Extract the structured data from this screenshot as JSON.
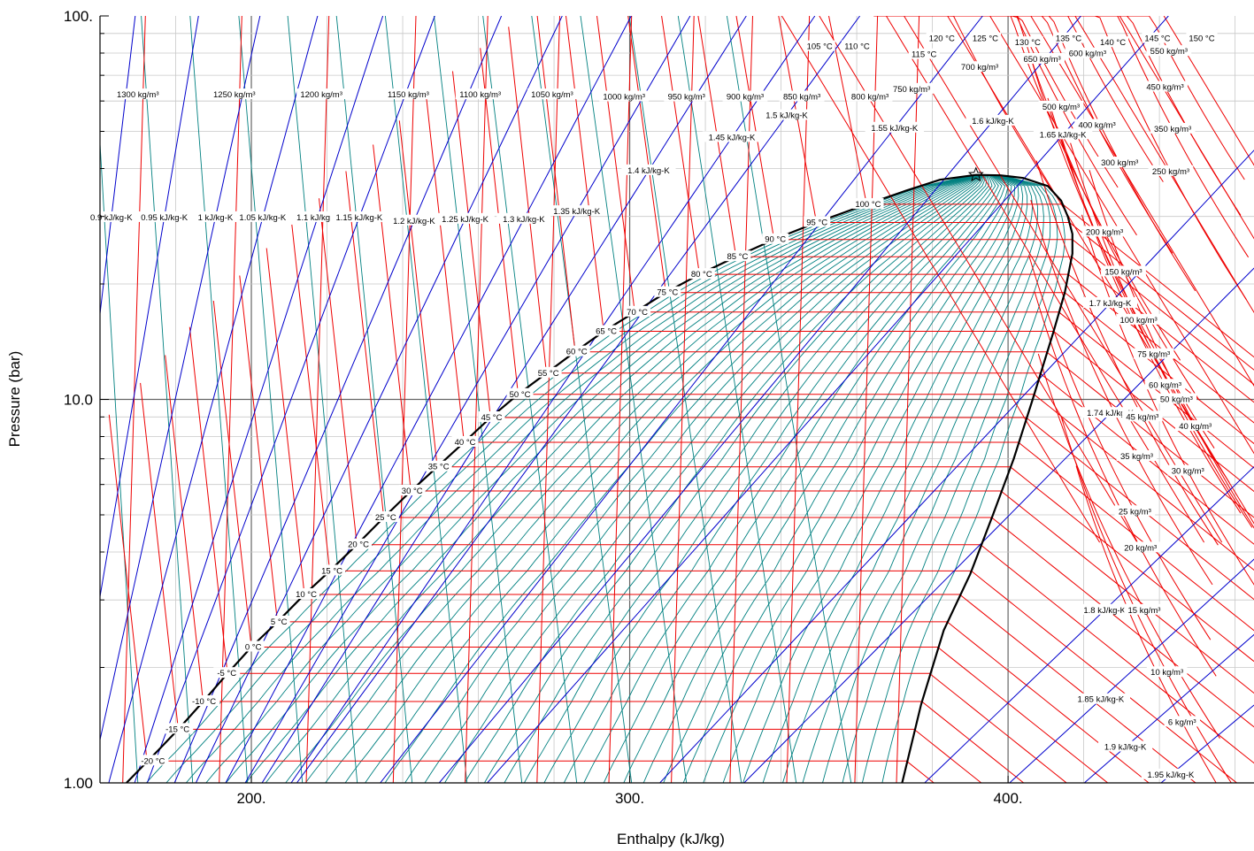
{
  "chart_data": {
    "type": "line",
    "title": "",
    "xlabel": "Enthalpy (kJ/kg)",
    "ylabel": "Pressure (bar)",
    "xlim": [
      160,
      465
    ],
    "ylim": [
      1.0,
      100.0
    ],
    "y_scale": "log",
    "grid": true,
    "x_ticks": [
      {
        "value": 200,
        "label": "200."
      },
      {
        "value": 300,
        "label": "300."
      },
      {
        "value": 400,
        "label": "400."
      }
    ],
    "y_ticks": [
      {
        "value": 1,
        "label": "1.00"
      },
      {
        "value": 10,
        "label": "10.0"
      },
      {
        "value": 100,
        "label": "100."
      }
    ],
    "critical_point": {
      "h": 391.5,
      "p": 38.5
    },
    "colors": {
      "isotherm": "#ee0000",
      "isochore": "#ee0000",
      "isentrope": "#0000cc",
      "quality": "#008080",
      "saturation": "#000000",
      "grid": "#c8c8c8",
      "major_grid": "#666666"
    },
    "saturation_dome": {
      "liquid": [
        {
          "h": 167.0,
          "p": 1.0
        },
        {
          "h": 175.5,
          "p": 1.22
        },
        {
          "h": 181.0,
          "p": 1.39
        },
        {
          "h": 187.5,
          "p": 1.64
        },
        {
          "h": 193.3,
          "p": 1.91
        },
        {
          "h": 200.0,
          "p": 2.26
        },
        {
          "h": 206.6,
          "p": 2.61
        },
        {
          "h": 213.6,
          "p": 3.07
        },
        {
          "h": 220.6,
          "p": 3.56
        },
        {
          "h": 227.9,
          "p": 4.18
        },
        {
          "h": 235.0,
          "p": 4.92
        },
        {
          "h": 242.1,
          "p": 5.76
        },
        {
          "h": 249.0,
          "p": 6.65
        },
        {
          "h": 256.1,
          "p": 7.71
        },
        {
          "h": 263.0,
          "p": 8.93
        },
        {
          "h": 270.4,
          "p": 10.29
        },
        {
          "h": 277.9,
          "p": 11.69
        },
        {
          "h": 285.4,
          "p": 13.27
        },
        {
          "h": 293.1,
          "p": 15.04
        },
        {
          "h": 301.3,
          "p": 16.88
        },
        {
          "h": 309.6,
          "p": 19.01
        },
        {
          "h": 318.4,
          "p": 21.18
        },
        {
          "h": 327.9,
          "p": 23.51
        },
        {
          "h": 338.0,
          "p": 26.08
        },
        {
          "h": 349.2,
          "p": 28.89
        },
        {
          "h": 362.5,
          "p": 32.24
        },
        {
          "h": 373.0,
          "p": 35.0
        },
        {
          "h": 382.0,
          "p": 37.4
        },
        {
          "h": 391.5,
          "p": 38.5
        }
      ],
      "vapor": [
        {
          "h": 391.5,
          "p": 38.5
        },
        {
          "h": 398.0,
          "p": 38.4
        },
        {
          "h": 404.0,
          "p": 37.8
        },
        {
          "h": 410.5,
          "p": 36.0
        },
        {
          "h": 414.0,
          "p": 33.0
        },
        {
          "h": 415.8,
          "p": 30.0
        },
        {
          "h": 417.0,
          "p": 27.0
        },
        {
          "h": 417.0,
          "p": 24.0
        },
        {
          "h": 415.0,
          "p": 19.0
        },
        {
          "h": 412.0,
          "p": 15.0
        },
        {
          "h": 406.5,
          "p": 10.0
        },
        {
          "h": 401.5,
          "p": 7.0
        },
        {
          "h": 396.0,
          "p": 5.0
        },
        {
          "h": 390.0,
          "p": 3.5
        },
        {
          "h": 383.0,
          "p": 2.5
        },
        {
          "h": 377.0,
          "p": 1.6
        },
        {
          "h": 372.0,
          "p": 1.0
        }
      ]
    },
    "series": [
      {
        "name": "isotherms",
        "labels_on_dome": [
          {
            "label": "-20 °C",
            "h": 174.0,
            "p": 1.14
          },
          {
            "label": "-15 °C",
            "h": 180.5,
            "p": 1.38
          },
          {
            "label": "-10 °C",
            "h": 187.5,
            "p": 1.63
          },
          {
            "label": "-5 °C",
            "h": 193.5,
            "p": 1.93
          },
          {
            "label": "0 °C",
            "h": 200.5,
            "p": 2.26
          },
          {
            "label": "5 °C",
            "h": 207.3,
            "p": 2.63
          },
          {
            "label": "10 °C",
            "h": 214.5,
            "p": 3.1
          },
          {
            "label": "15 °C",
            "h": 221.3,
            "p": 3.57
          },
          {
            "label": "20 °C",
            "h": 228.3,
            "p": 4.18
          },
          {
            "label": "25 °C",
            "h": 235.5,
            "p": 4.92
          },
          {
            "label": "30 °C",
            "h": 242.5,
            "p": 5.77
          },
          {
            "label": "35 °C",
            "h": 249.5,
            "p": 6.67
          },
          {
            "label": "40 °C",
            "h": 256.5,
            "p": 7.73
          },
          {
            "label": "45 °C",
            "h": 263.5,
            "p": 8.97
          },
          {
            "label": "50 °C",
            "h": 271.0,
            "p": 10.31
          },
          {
            "label": "55 °C",
            "h": 278.5,
            "p": 11.71
          },
          {
            "label": "60 °C",
            "h": 286.0,
            "p": 13.31
          },
          {
            "label": "65 °C",
            "h": 293.8,
            "p": 15.05
          },
          {
            "label": "70 °C",
            "h": 302.0,
            "p": 16.89
          },
          {
            "label": "75 °C",
            "h": 310.0,
            "p": 19.0
          },
          {
            "label": "80 °C",
            "h": 319.0,
            "p": 21.19
          },
          {
            "label": "85 °C",
            "h": 328.5,
            "p": 23.56
          },
          {
            "label": "90 °C",
            "h": 338.5,
            "p": 26.12
          },
          {
            "label": "95 °C",
            "h": 349.5,
            "p": 28.93
          },
          {
            "label": "100 °C",
            "h": 363.0,
            "p": 32.27
          }
        ],
        "labels_top": [
          {
            "label": "105 °C",
            "h": 350.2,
            "p": 83.2
          },
          {
            "label": "110 °C",
            "h": 360.1,
            "p": 83.2
          },
          {
            "label": "115 °C",
            "h": 377.8,
            "p": 79.3
          },
          {
            "label": "120 °C",
            "h": 382.5,
            "p": 87.3
          },
          {
            "label": "125 °C",
            "h": 394.0,
            "p": 87.3
          },
          {
            "label": "130 °C",
            "h": 405.2,
            "p": 85.2
          },
          {
            "label": "135 °C",
            "h": 416.0,
            "p": 87.3
          },
          {
            "label": "140 °C",
            "h": 427.7,
            "p": 85.2
          },
          {
            "label": "145 °C",
            "h": 439.5,
            "p": 87.3
          },
          {
            "label": "150 °C",
            "h": 451.2,
            "p": 87.3
          }
        ]
      },
      {
        "name": "isentropes",
        "labels": [
          {
            "label": "0.9 kJ/kg-K",
            "h": 163.0,
            "p": 29.8
          },
          {
            "label": "0.95 kJ/kg-K",
            "h": 177.0,
            "p": 29.8
          },
          {
            "label": "1 kJ/kg-K",
            "h": 190.5,
            "p": 29.8
          },
          {
            "label": "1.05 kJ/kg-K",
            "h": 203.0,
            "p": 29.8
          },
          {
            "label": "1.1 kJ/kg-K",
            "h": 217.5,
            "p": 29.8
          },
          {
            "label": "1.15 kJ/kg-K",
            "h": 228.5,
            "p": 29.8
          },
          {
            "label": "1.2 kJ/kg-K",
            "h": 243.0,
            "p": 29.2
          },
          {
            "label": "1.25 kJ/kg-K",
            "h": 256.5,
            "p": 29.5
          },
          {
            "label": "1.3 kJ/kg-K",
            "h": 272.0,
            "p": 29.5
          },
          {
            "label": "1.35 kJ/kg-K",
            "h": 286.0,
            "p": 30.9
          },
          {
            "label": "1.4 kJ/kg-K",
            "h": 305.0,
            "p": 39.5
          },
          {
            "label": "1.45 kJ/kg-K",
            "h": 327.0,
            "p": 48.2
          },
          {
            "label": "1.5 kJ/kg-K",
            "h": 341.5,
            "p": 55.0
          },
          {
            "label": "1.55 kJ/kg-K",
            "h": 370.0,
            "p": 51.0
          },
          {
            "label": "1.6 kJ/kg-K",
            "h": 396.0,
            "p": 53.2
          },
          {
            "label": "1.65 kJ/kg-K",
            "h": 414.5,
            "p": 49.0
          },
          {
            "label": "1.7 kJ/kg-K",
            "h": 427.0,
            "p": 17.8
          },
          {
            "label": "1.74 kJ/kg-K",
            "h": 427.0,
            "p": 9.2
          },
          {
            "label": "1.8 kJ/kg-K",
            "h": 425.5,
            "p": 2.82
          },
          {
            "label": "1.85 kJ/kg-K",
            "h": 424.5,
            "p": 1.65
          },
          {
            "label": "1.9 kJ/kg-K",
            "h": 431.0,
            "p": 1.24
          },
          {
            "label": "1.95 kJ/kg-K",
            "h": 443.0,
            "p": 1.05
          }
        ]
      },
      {
        "name": "isochores",
        "labels": [
          {
            "label": "1300 kg/m³",
            "h": 170.0,
            "p": 62.3
          },
          {
            "label": "1250 kg/m³",
            "h": 195.5,
            "p": 62.3
          },
          {
            "label": "1200 kg/m³",
            "h": 218.5,
            "p": 62.3
          },
          {
            "label": "1150 kg/m³",
            "h": 241.5,
            "p": 62.3
          },
          {
            "label": "1100 kg/m³",
            "h": 260.5,
            "p": 62.3
          },
          {
            "label": "1050 kg/m³",
            "h": 279.5,
            "p": 62.3
          },
          {
            "label": "1000 kg/m³",
            "h": 298.5,
            "p": 61.5
          },
          {
            "label": "950 kg/m³",
            "h": 315.0,
            "p": 61.5
          },
          {
            "label": "900 kg/m³",
            "h": 330.5,
            "p": 61.5
          },
          {
            "label": "850 kg/m³",
            "h": 345.5,
            "p": 61.5
          },
          {
            "label": "800 kg/m³",
            "h": 363.5,
            "p": 61.5
          },
          {
            "label": "750 kg/m³",
            "h": 374.5,
            "p": 64.4
          },
          {
            "label": "700 kg/m³",
            "h": 392.5,
            "p": 73.4
          },
          {
            "label": "650 kg/m³",
            "h": 409.0,
            "p": 77.1
          },
          {
            "label": "600 kg/m³",
            "h": 421.0,
            "p": 79.7
          },
          {
            "label": "550 kg/m³",
            "h": 442.5,
            "p": 80.8
          },
          {
            "label": "500 kg/m³",
            "h": 414.0,
            "p": 57.9
          },
          {
            "label": "450 kg/m³",
            "h": 441.5,
            "p": 65.2
          },
          {
            "label": "400 kg/m³",
            "h": 423.5,
            "p": 51.9
          },
          {
            "label": "350 kg/m³",
            "h": 443.5,
            "p": 50.7
          },
          {
            "label": "300 kg/m³",
            "h": 429.5,
            "p": 41.4
          },
          {
            "label": "250 kg/m³",
            "h": 443.0,
            "p": 39.3
          },
          {
            "label": "200 kg/m³",
            "h": 425.5,
            "p": 27.3
          },
          {
            "label": "150 kg/m³",
            "h": 430.5,
            "p": 21.5
          },
          {
            "label": "100 kg/m³",
            "h": 434.5,
            "p": 16.1
          },
          {
            "label": "75 kg/m³",
            "h": 438.5,
            "p": 13.1
          },
          {
            "label": "60 kg/m³",
            "h": 441.5,
            "p": 10.9
          },
          {
            "label": "50 kg/m³",
            "h": 444.5,
            "p": 10.0
          },
          {
            "label": "45 kg/m³",
            "h": 435.5,
            "p": 9.0
          },
          {
            "label": "40 kg/m³",
            "h": 449.5,
            "p": 8.5
          },
          {
            "label": "35 kg/m³",
            "h": 434.0,
            "p": 7.1
          },
          {
            "label": "30 kg/m³",
            "h": 447.5,
            "p": 6.5
          },
          {
            "label": "25 kg/m³",
            "h": 433.5,
            "p": 5.1
          },
          {
            "label": "20 kg/m³",
            "h": 435.0,
            "p": 4.1
          },
          {
            "label": "15 kg/m³",
            "h": 436.0,
            "p": 2.82
          },
          {
            "label": "10 kg/m³",
            "h": 442.0,
            "p": 1.94
          },
          {
            "label": "6 kg/m³",
            "h": 446.0,
            "p": 1.44
          }
        ]
      }
    ]
  }
}
